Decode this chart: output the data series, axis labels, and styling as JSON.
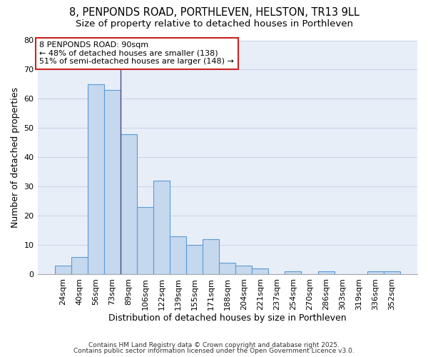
{
  "title_line1": "8, PENPONDS ROAD, PORTHLEVEN, HELSTON, TR13 9LL",
  "title_line2": "Size of property relative to detached houses in Porthleven",
  "xlabel": "Distribution of detached houses by size in Porthleven",
  "ylabel": "Number of detached properties",
  "categories": [
    "24sqm",
    "40sqm",
    "56sqm",
    "73sqm",
    "89sqm",
    "106sqm",
    "122sqm",
    "139sqm",
    "155sqm",
    "171sqm",
    "188sqm",
    "204sqm",
    "221sqm",
    "237sqm",
    "254sqm",
    "270sqm",
    "286sqm",
    "303sqm",
    "319sqm",
    "336sqm",
    "352sqm"
  ],
  "values": [
    3,
    6,
    65,
    63,
    48,
    23,
    32,
    13,
    10,
    12,
    4,
    3,
    2,
    0,
    1,
    0,
    1,
    0,
    0,
    1,
    1
  ],
  "bar_color": "#c5d8ee",
  "bar_edge_color": "#5b9bd5",
  "vline_color": "#4a4a8a",
  "vline_x_index": 4,
  "annotation_text": "8 PENPONDS ROAD: 90sqm\n← 48% of detached houses are smaller (138)\n51% of semi-detached houses are larger (148) →",
  "annotation_box_color": "#ffffff",
  "annotation_edge_color": "#cc2222",
  "ylim": [
    0,
    80
  ],
  "yticks": [
    0,
    10,
    20,
    30,
    40,
    50,
    60,
    70,
    80
  ],
  "grid_color": "#c8d4e8",
  "bg_color": "#e8eef8",
  "footer_line1": "Contains HM Land Registry data © Crown copyright and database right 2025.",
  "footer_line2": "Contains public sector information licensed under the Open Government Licence v3.0.",
  "title_fontsize": 10.5,
  "subtitle_fontsize": 9.5,
  "axis_label_fontsize": 9,
  "tick_fontsize": 8,
  "annotation_fontsize": 8,
  "footer_fontsize": 6.5
}
